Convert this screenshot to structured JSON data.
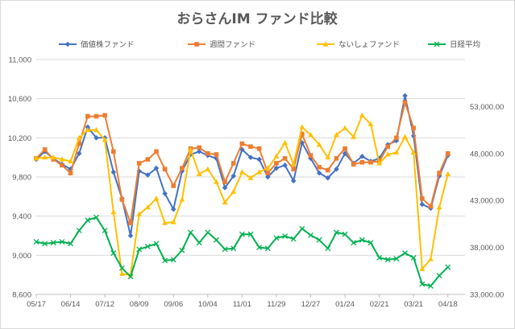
{
  "chart_data": {
    "type": "line",
    "title": "おらさんIM ファンド比較",
    "x_tick_labels": [
      "05/17",
      "06/14",
      "07/12",
      "08/09",
      "09/06",
      "10/04",
      "11/01",
      "11/29",
      "12/27",
      "01/24",
      "02/21",
      "03/21",
      "04/18"
    ],
    "y_left": {
      "min": 8600,
      "max": 11000,
      "step": 400,
      "tick_labels": [
        "8,600",
        "9,000",
        "9,400",
        "9,800",
        "10,200",
        "10,600",
        "11,000"
      ]
    },
    "y_right": {
      "min": 33000,
      "max": 58000,
      "step": 5000,
      "tick_labels": [
        "33,000.00",
        "38,000.00",
        "43,000.00",
        "48,000.00",
        "53,000.00"
      ]
    },
    "legend_position": "top",
    "series": [
      {
        "name": "価値株ファンド",
        "color": "#4472c4",
        "marker": "diamond",
        "axis": "left",
        "values": [
          9980,
          10060,
          9990,
          9930,
          9880,
          10040,
          10310,
          10200,
          10200,
          9850,
          9580,
          9200,
          9860,
          9820,
          9890,
          9630,
          9470,
          9860,
          10030,
          10060,
          10020,
          9990,
          9690,
          9810,
          10080,
          10000,
          9980,
          9800,
          9890,
          9920,
          9760,
          10150,
          9990,
          9840,
          9790,
          9880,
          10040,
          9940,
          10010,
          9960,
          9990,
          10130,
          10170,
          10630,
          10220,
          9520,
          9480,
          9810,
          10020
        ]
      },
      {
        "name": "週間ファンド",
        "color": "#ed7d31",
        "marker": "square",
        "axis": "left",
        "values": [
          9990,
          10080,
          9980,
          9920,
          9840,
          10140,
          10420,
          10420,
          10430,
          10060,
          9570,
          9330,
          9940,
          9980,
          10060,
          9880,
          9710,
          9890,
          10090,
          10100,
          10040,
          10030,
          9750,
          9940,
          10140,
          10110,
          10090,
          9840,
          9940,
          9990,
          9880,
          10240,
          10020,
          9900,
          9870,
          9990,
          10090,
          9930,
          9950,
          9950,
          9960,
          10110,
          10200,
          10560,
          10300,
          9580,
          9500,
          9840,
          10040
        ]
      },
      {
        "name": "ないしょファンド",
        "color": "#ffc000",
        "marker": "triangle",
        "axis": "left",
        "values": [
          9990,
          10000,
          10000,
          9980,
          9960,
          10200,
          10280,
          10280,
          10180,
          9440,
          8810,
          8800,
          9420,
          9490,
          9580,
          9330,
          9340,
          9570,
          10080,
          9830,
          9880,
          9750,
          9540,
          9650,
          9850,
          9790,
          9850,
          9890,
          10010,
          10150,
          9930,
          10310,
          10230,
          10130,
          10000,
          10230,
          10300,
          10210,
          10430,
          10340,
          9940,
          10030,
          10050,
          10210,
          10050,
          8860,
          8960,
          9490,
          9830
        ]
      },
      {
        "name": "日経平均",
        "color": "#00b050",
        "marker": "x",
        "axis": "right",
        "values": [
          38600,
          38400,
          38500,
          38600,
          38400,
          39800,
          40900,
          41200,
          39800,
          37400,
          35800,
          34900,
          37800,
          38100,
          38400,
          36600,
          36700,
          37700,
          39600,
          38500,
          39600,
          38800,
          37800,
          37900,
          39400,
          39400,
          38000,
          37900,
          39000,
          39200,
          38900,
          40000,
          39300,
          38800,
          37900,
          39600,
          39400,
          38500,
          38800,
          38500,
          36900,
          36700,
          36800,
          37400,
          36900,
          34100,
          33900,
          35000,
          35900
        ]
      }
    ]
  }
}
